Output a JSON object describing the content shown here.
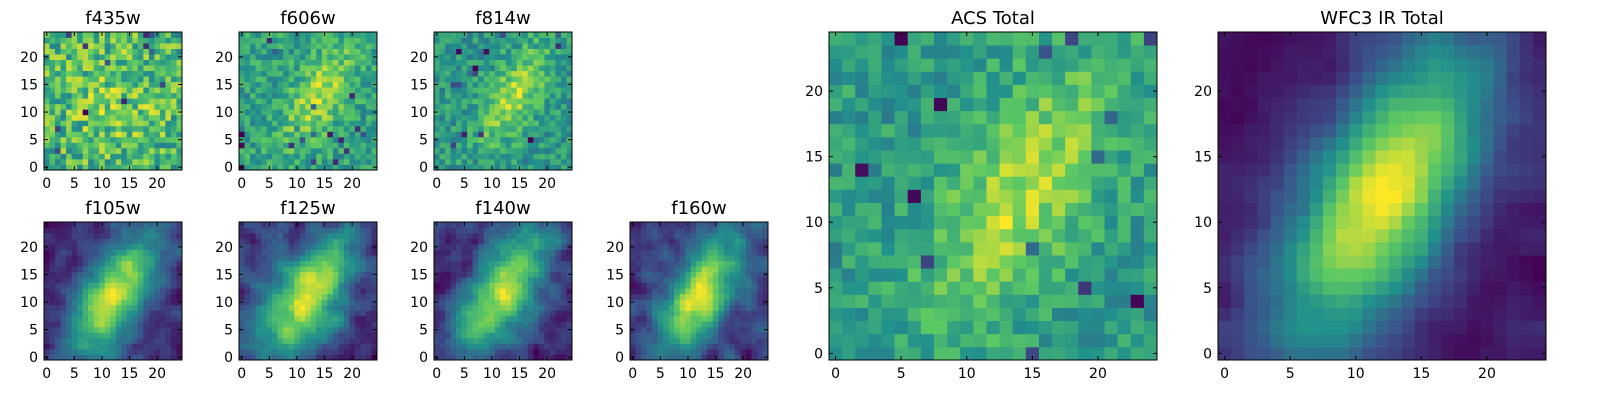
{
  "colormap": "viridis",
  "colormap_stops": [
    "#440154",
    "#3b528b",
    "#21918c",
    "#5ec962",
    "#fde725"
  ],
  "chart_data": [
    {
      "type": "heatmap",
      "title": "f435w",
      "grid_size": 25,
      "xticks": [
        0,
        5,
        10,
        15,
        20
      ],
      "yticks": [
        0,
        5,
        10,
        15,
        20
      ],
      "texture": "noise",
      "center": [
        12,
        12
      ],
      "sigma": [
        7,
        7
      ],
      "angle_deg": 0,
      "signal": 0.15,
      "noise": 0.55,
      "base": 0.55,
      "seed": 11
    },
    {
      "type": "heatmap",
      "title": "f606w",
      "grid_size": 25,
      "xticks": [
        0,
        5,
        10,
        15,
        20
      ],
      "yticks": [
        0,
        5,
        10,
        15,
        20
      ],
      "texture": "noise",
      "center": [
        14,
        13
      ],
      "sigma": [
        3,
        7
      ],
      "angle_deg": 30,
      "signal": 0.45,
      "noise": 0.45,
      "base": 0.4,
      "seed": 23
    },
    {
      "type": "heatmap",
      "title": "f814w",
      "grid_size": 25,
      "xticks": [
        0,
        5,
        10,
        15,
        20
      ],
      "yticks": [
        0,
        5,
        10,
        15,
        20
      ],
      "texture": "noise",
      "center": [
        14,
        13
      ],
      "sigma": [
        3,
        7
      ],
      "angle_deg": 30,
      "signal": 0.5,
      "noise": 0.45,
      "base": 0.4,
      "seed": 37
    },
    {
      "type": "heatmap",
      "title": "f105w",
      "grid_size": 25,
      "xticks": [
        0,
        5,
        10,
        15,
        20
      ],
      "yticks": [
        0,
        5,
        10,
        15,
        20
      ],
      "texture": "smooth",
      "center": [
        12,
        11
      ],
      "sigma": [
        4,
        9
      ],
      "angle_deg": 30,
      "signal": 0.8,
      "noise": 0.25,
      "base": 0.2,
      "seed": 41
    },
    {
      "type": "heatmap",
      "title": "f125w",
      "grid_size": 25,
      "xticks": [
        0,
        5,
        10,
        15,
        20
      ],
      "yticks": [
        0,
        5,
        10,
        15,
        20
      ],
      "texture": "smooth",
      "center": [
        12,
        11
      ],
      "sigma": [
        4,
        9
      ],
      "angle_deg": 30,
      "signal": 0.75,
      "noise": 0.3,
      "base": 0.2,
      "seed": 53
    },
    {
      "type": "heatmap",
      "title": "f140w",
      "grid_size": 25,
      "xticks": [
        0,
        5,
        10,
        15,
        20
      ],
      "yticks": [
        0,
        5,
        10,
        15,
        20
      ],
      "texture": "smooth",
      "center": [
        12,
        12
      ],
      "sigma": [
        4,
        9
      ],
      "angle_deg": 30,
      "signal": 0.75,
      "noise": 0.3,
      "base": 0.2,
      "seed": 67
    },
    {
      "type": "heatmap",
      "title": "f160w",
      "grid_size": 25,
      "xticks": [
        0,
        5,
        10,
        15,
        20
      ],
      "yticks": [
        0,
        5,
        10,
        15,
        20
      ],
      "texture": "smooth",
      "center": [
        12,
        11
      ],
      "sigma": [
        3.5,
        8
      ],
      "angle_deg": 30,
      "signal": 0.85,
      "noise": 0.3,
      "base": 0.15,
      "seed": 79
    },
    {
      "type": "heatmap",
      "title": "ACS Total",
      "grid_size": 25,
      "xticks": [
        0,
        5,
        10,
        15,
        20
      ],
      "yticks": [
        0,
        5,
        10,
        15,
        20
      ],
      "texture": "noise",
      "center": [
        14,
        12
      ],
      "sigma": [
        3.5,
        8
      ],
      "angle_deg": 30,
      "signal": 0.45,
      "noise": 0.35,
      "base": 0.5,
      "seed": 91
    },
    {
      "type": "heatmap",
      "title": "WFC3 IR Total",
      "grid_size": 25,
      "xticks": [
        0,
        5,
        10,
        15,
        20
      ],
      "yticks": [
        0,
        5,
        10,
        15,
        20
      ],
      "texture": "smooth",
      "center": [
        12,
        12
      ],
      "sigma": [
        4,
        9
      ],
      "angle_deg": 30,
      "signal": 0.85,
      "noise": 0.12,
      "base": 0.2,
      "seed": 103
    }
  ]
}
